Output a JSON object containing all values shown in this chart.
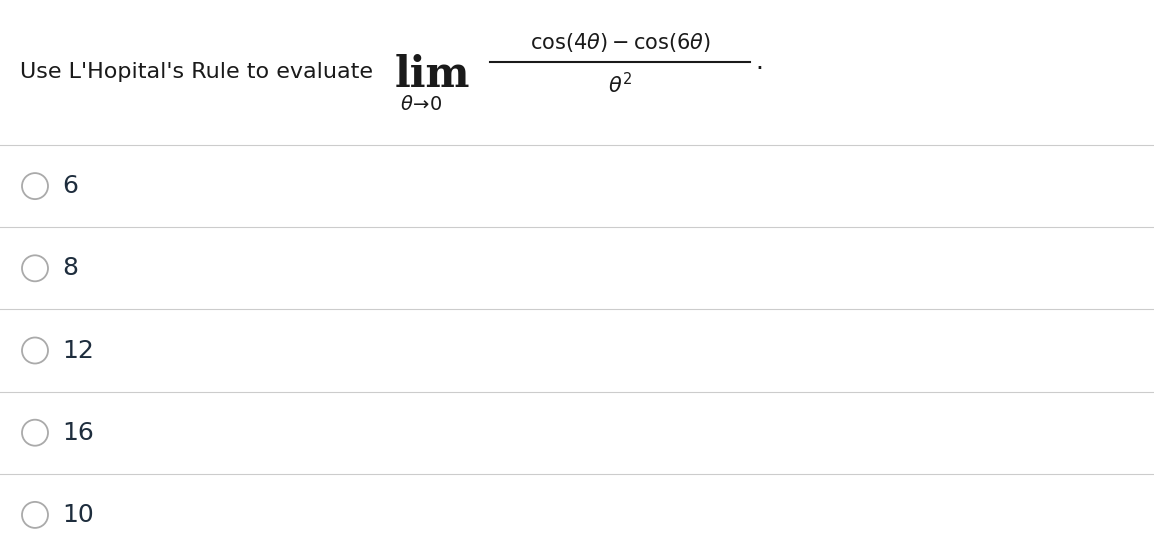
{
  "background_color": "#ffffff",
  "text_color": "#1a1a1a",
  "choice_text_color": "#1e2d3d",
  "line_color": "#cccccc",
  "circle_color": "#aaaaaa",
  "intro_text": "Use L'Hopital's Rule to evaluate",
  "choices": [
    "6",
    "8",
    "12",
    "16",
    "10"
  ],
  "figsize": [
    11.54,
    5.56
  ],
  "dpi": 100
}
